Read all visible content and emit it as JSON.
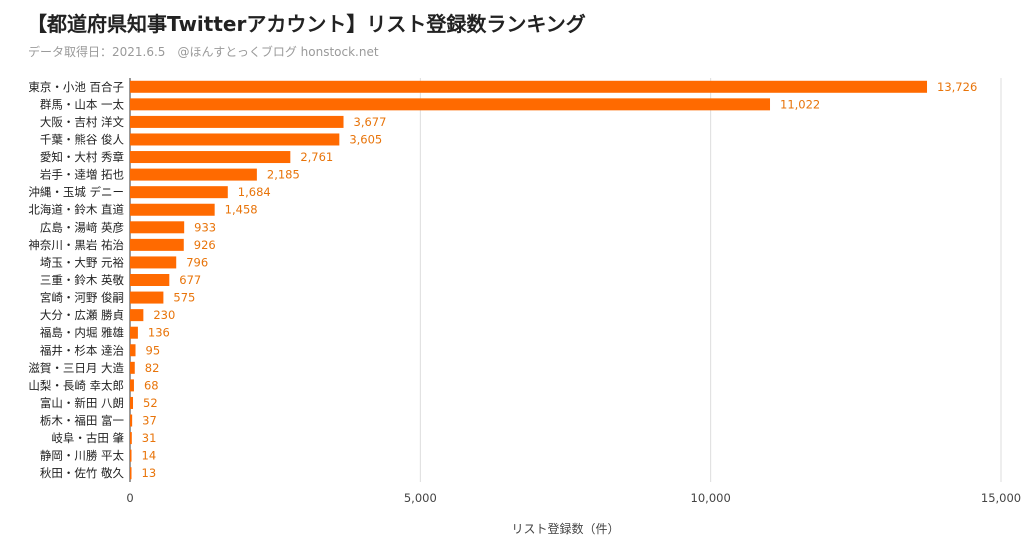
{
  "header": {
    "title": "【都道府県知事Twitterアカウント】リスト登録数ランキング",
    "subtitle": "データ取得日：2021.6.5　@ほんすとっくブログ honstock.net"
  },
  "chart_data": {
    "type": "bar",
    "orientation": "horizontal",
    "title": "【都道府県知事Twitterアカウント】リスト登録数ランキング",
    "xlabel": "リスト登録数（件）",
    "ylabel": "",
    "xlim": [
      0,
      15000
    ],
    "xticks": [
      0,
      5000,
      10000,
      15000
    ],
    "xtick_labels": [
      "0",
      "5,000",
      "10,000",
      "15,000"
    ],
    "grid": true,
    "color": "#ff6a00",
    "label_color": "#e8740a",
    "categories": [
      "東京・小池 百合子",
      "群馬・山本 一太",
      "大阪・吉村 洋文",
      "千葉・熊谷 俊人",
      "愛知・大村 秀章",
      "岩手・達増 拓也",
      "沖縄・玉城 デニー",
      "北海道・鈴木 直道",
      "広島・湯﨑 英彦",
      "神奈川・黒岩 祐治",
      "埼玉・大野 元裕",
      "三重・鈴木 英敬",
      "宮崎・河野 俊嗣",
      "大分・広瀬 勝貞",
      "福島・内堀 雅雄",
      "福井・杉本 達治",
      "滋賀・三日月 大造",
      "山梨・長崎 幸太郎",
      "富山・新田 八朗",
      "栃木・福田 富一",
      "岐阜・古田 肇",
      "静岡・川勝 平太",
      "秋田・佐竹 敬久"
    ],
    "values": [
      13726,
      11022,
      3677,
      3605,
      2761,
      2185,
      1684,
      1458,
      933,
      926,
      796,
      677,
      575,
      230,
      136,
      95,
      82,
      68,
      52,
      37,
      31,
      14,
      13
    ],
    "value_labels": [
      "13,726",
      "11,022",
      "3,677",
      "3,605",
      "2,761",
      "2,185",
      "1,684",
      "1,458",
      "933",
      "926",
      "796",
      "677",
      "575",
      "230",
      "136",
      "95",
      "82",
      "68",
      "52",
      "37",
      "31",
      "14",
      "13"
    ]
  }
}
